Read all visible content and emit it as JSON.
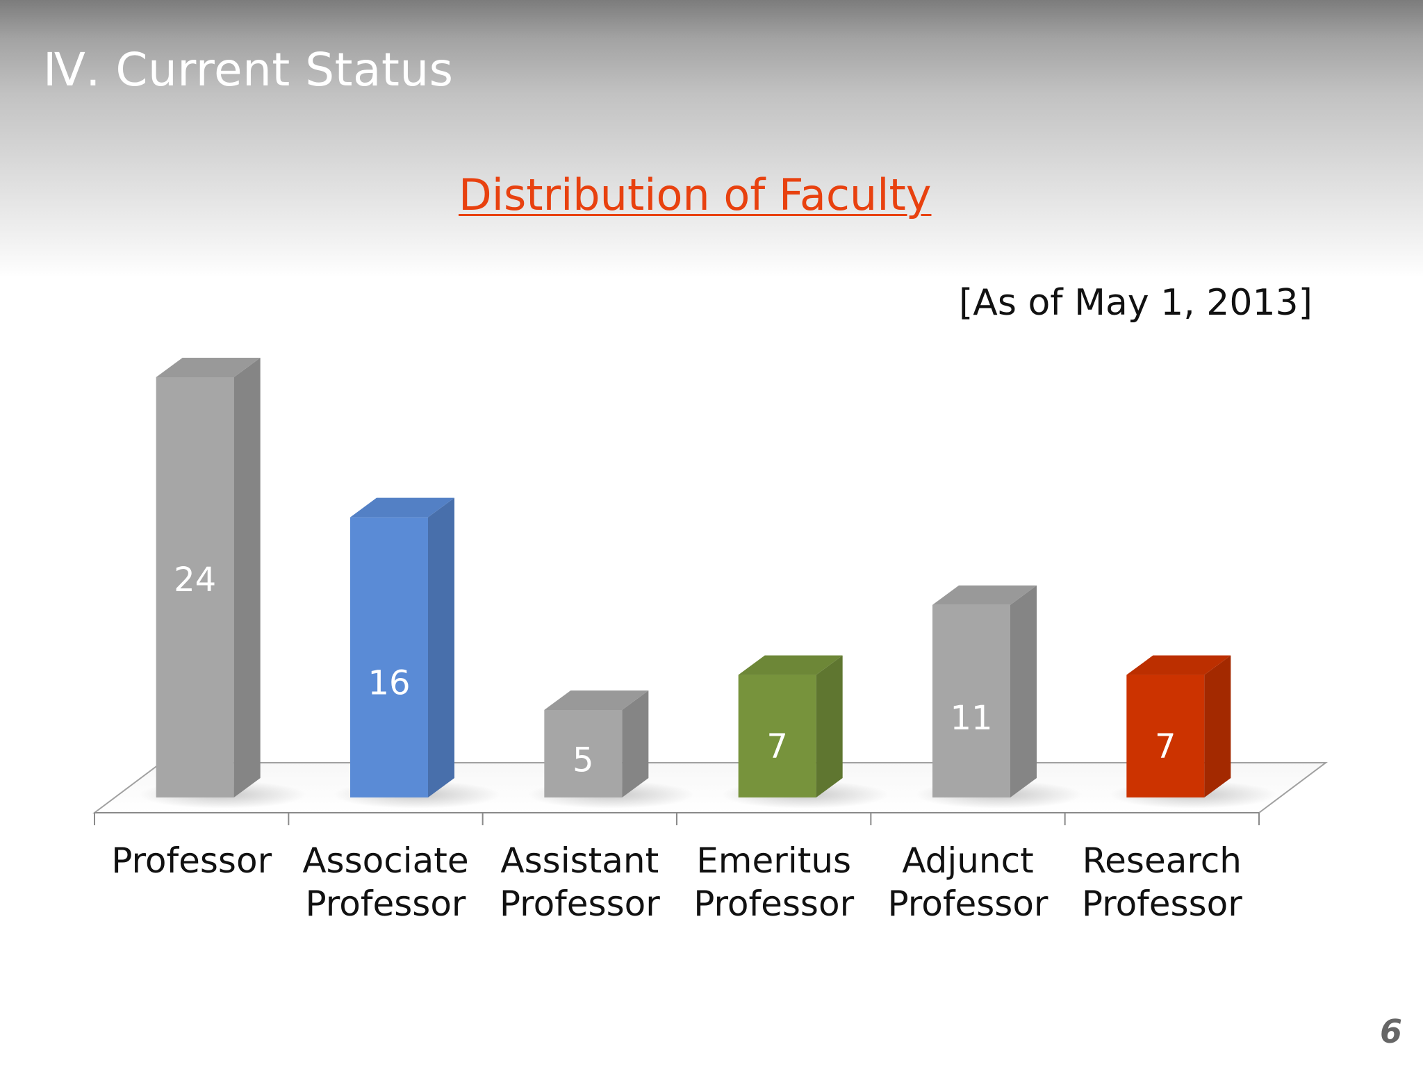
{
  "slide": {
    "section_title": "Ⅳ. Current Status",
    "note": "[As of May 1, 2013]",
    "page_number": "6"
  },
  "chart_data": {
    "type": "bar",
    "title": "Distribution of Faculty",
    "categories": [
      "Professor",
      "Associate Professor",
      "Assistant Professor",
      "Emeritus Professor",
      "Adjunct Professor",
      "Research Professor"
    ],
    "category_lines": [
      [
        "Professor"
      ],
      [
        "Associate",
        "Professor"
      ],
      [
        "Assistant",
        "Professor"
      ],
      [
        "Emeritus",
        "Professor"
      ],
      [
        "Adjunct",
        "Professor"
      ],
      [
        "Research",
        "Professor"
      ]
    ],
    "values": [
      24,
      16,
      5,
      7,
      11,
      7
    ],
    "data_labels": [
      "24",
      "16",
      "5",
      "7",
      "11",
      "7"
    ],
    "bar_colors": [
      "#a6a6a6",
      "#5a8bd6",
      "#a6a6a6",
      "#77933c",
      "#a6a6a6",
      "#cc3300"
    ],
    "label_color": "#ffffff",
    "xlabel": "",
    "ylabel": "",
    "ylim": [
      0,
      24
    ],
    "grid": false,
    "legend": "none",
    "style": "3d-column"
  }
}
